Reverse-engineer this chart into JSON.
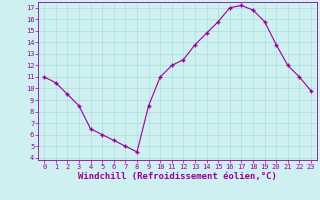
{
  "x": [
    0,
    1,
    2,
    3,
    4,
    5,
    6,
    7,
    8,
    9,
    10,
    11,
    12,
    13,
    14,
    15,
    16,
    17,
    18,
    19,
    20,
    21,
    22,
    23
  ],
  "y": [
    11,
    10.5,
    9.5,
    8.5,
    6.5,
    6.0,
    5.5,
    5.0,
    4.5,
    8.5,
    11.0,
    12.0,
    12.5,
    13.8,
    14.8,
    15.8,
    17.0,
    17.2,
    16.8,
    15.8,
    13.8,
    12.0,
    11.0,
    9.8
  ],
  "line_color": "#990099",
  "marker": "+",
  "marker_size": 3,
  "marker_lw": 1.0,
  "bg_color": "#cff0f0",
  "grid_color": "#aadddd",
  "xlabel": "Windchill (Refroidissement éolien,°C)",
  "xlabel_color": "#990099",
  "tick_color": "#990099",
  "ylim": [
    3.8,
    17.5
  ],
  "xlim": [
    -0.5,
    23.5
  ],
  "yticks": [
    4,
    5,
    6,
    7,
    8,
    9,
    10,
    11,
    12,
    13,
    14,
    15,
    16,
    17
  ],
  "xticks": [
    0,
    1,
    2,
    3,
    4,
    5,
    6,
    7,
    8,
    9,
    10,
    11,
    12,
    13,
    14,
    15,
    16,
    17,
    18,
    19,
    20,
    21,
    22,
    23
  ],
  "tick_fontsize": 5.0,
  "xlabel_fontsize": 6.5,
  "linewidth": 0.8
}
